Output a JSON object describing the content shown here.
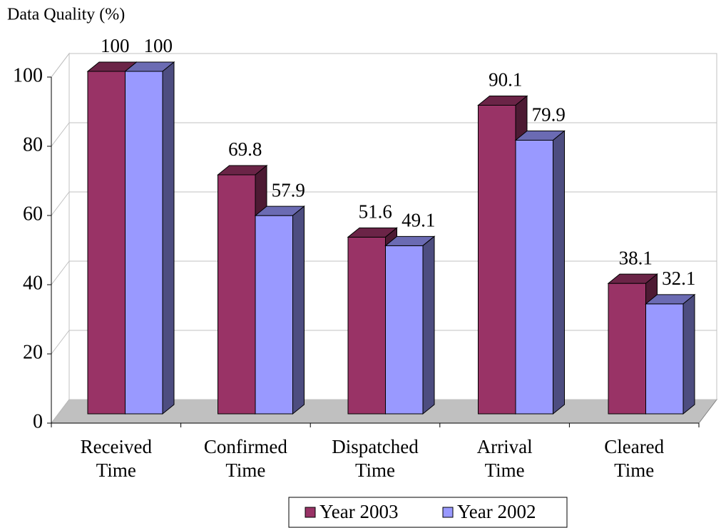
{
  "chart_data": {
    "type": "bar3d",
    "title": "Data Quality (%)",
    "categories": [
      "Received Time",
      "Confirmed Time",
      "Dispatched Time",
      "Arrival Time",
      "Cleared Time"
    ],
    "series": [
      {
        "name": "Year 2003",
        "color": "#993366",
        "values": [
          100,
          69.8,
          51.6,
          90.1,
          38.1
        ]
      },
      {
        "name": "Year 2002",
        "color": "#9999ff",
        "values": [
          100,
          57.9,
          49.1,
          79.9,
          32.1
        ]
      }
    ],
    "ylim": [
      0,
      100
    ],
    "yticks": [
      0,
      20,
      40,
      60,
      80,
      100
    ],
    "grid": true,
    "legend": "bottom"
  }
}
